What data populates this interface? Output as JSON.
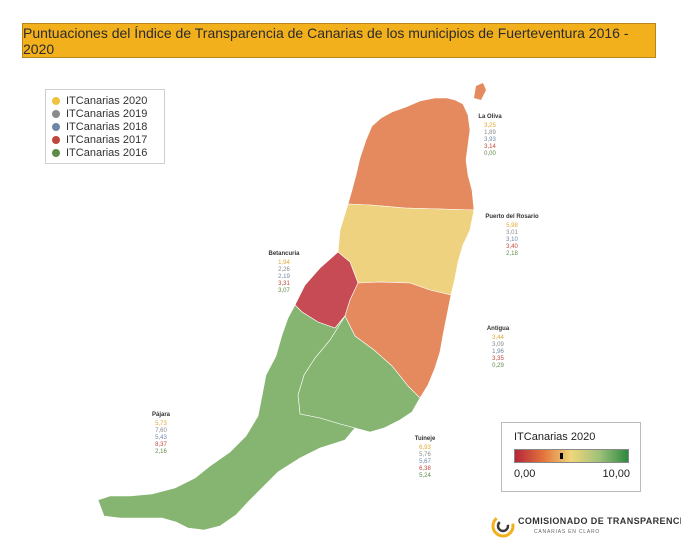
{
  "title": "Puntuaciones del Índice de Transparencia de Canarias de los municipios de Fuerteventura 2016 - 2020",
  "legend": [
    {
      "label": "ITCanarias 2020",
      "color": "#f0c23e"
    },
    {
      "label": "ITCanarias 2019",
      "color": "#8a8a8a"
    },
    {
      "label": "ITCanarias 2018",
      "color": "#6f86a8"
    },
    {
      "label": "ITCanarias 2017",
      "color": "#c0473d"
    },
    {
      "label": "ITCanarias 2016",
      "color": "#5e8a47"
    }
  ],
  "municipalities": [
    {
      "name": "La Oliva",
      "values": [
        "3,25",
        "1,89",
        "3,93",
        "3,14",
        "0,00"
      ],
      "fill": "#e48a5e"
    },
    {
      "name": "Puerto del Rosario",
      "values": [
        "5,98",
        "3,01",
        "3,10",
        "3,40",
        "2,18"
      ],
      "fill": "#efd27f"
    },
    {
      "name": "Betancuria",
      "values": [
        "1,94",
        "2,26",
        "2,19",
        "3,31",
        "3,07"
      ],
      "fill": "#c64b55"
    },
    {
      "name": "Antigua",
      "values": [
        "3,44",
        "3,09",
        "1,96",
        "3,35",
        "0,29"
      ],
      "fill": "#e48a5e"
    },
    {
      "name": "Pájara",
      "values": [
        "5,73",
        "7,60",
        "5,43",
        "8,37",
        "2,16"
      ],
      "fill": "#86b572"
    },
    {
      "name": "Tuineje",
      "values": [
        "6,93",
        "5,76",
        "5,67",
        "6,38",
        "5,24"
      ],
      "fill": "#86b572"
    }
  ],
  "value_colors": [
    "#e0a830",
    "#8a8a8a",
    "#6f86a8",
    "#c0473d",
    "#5e8a47"
  ],
  "scale": {
    "title": "ITCanarias 2020",
    "min_label": "0,00",
    "max_label": "10,00"
  },
  "logo": {
    "main": "COMISIONADO DE TRANSPARENCIA",
    "sub": "CANARIAS EN CLARO"
  }
}
